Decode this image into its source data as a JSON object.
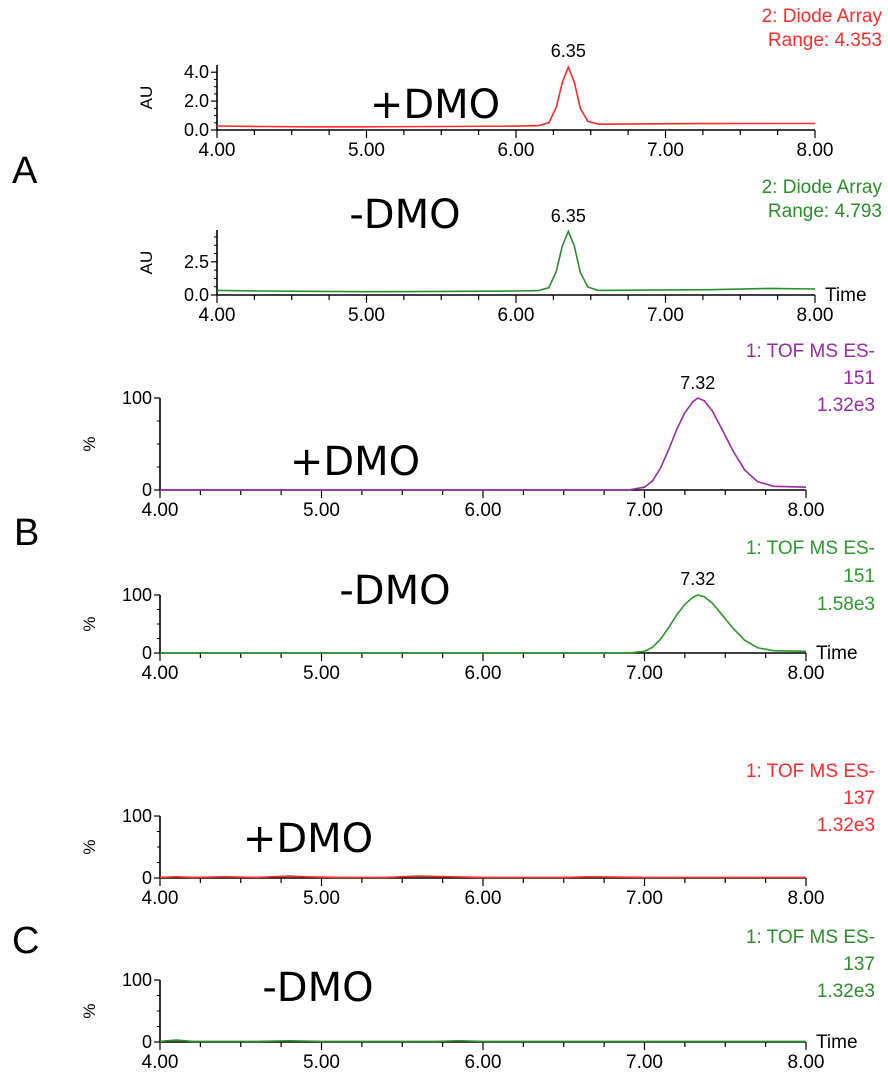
{
  "sections": [
    "A",
    "B",
    "C"
  ],
  "x_axis_label": "Time",
  "chart_data": [
    {
      "type": "line",
      "section": "A",
      "condition": "+DMO",
      "detector": "2: Diode Array",
      "range": "Range: 4.353",
      "ylabel": "AU",
      "color": "#ff2a2a",
      "xlim": [
        4.0,
        8.0
      ],
      "ylim": [
        0.0,
        4.5
      ],
      "xticks": [
        "4.00",
        "5.00",
        "6.00",
        "7.00",
        "8.00"
      ],
      "yticks": [
        {
          "value": 0.0,
          "label": "0.0"
        },
        {
          "value": 2.0,
          "label": "2.0"
        },
        {
          "value": 4.0,
          "label": "4.0"
        }
      ],
      "peak_label": "6.35",
      "show_time_label": false,
      "points": [
        [
          4.0,
          0.28
        ],
        [
          4.3,
          0.24
        ],
        [
          4.6,
          0.22
        ],
        [
          5.0,
          0.22
        ],
        [
          5.5,
          0.24
        ],
        [
          6.0,
          0.27
        ],
        [
          6.15,
          0.3
        ],
        [
          6.22,
          0.5
        ],
        [
          6.27,
          1.6
        ],
        [
          6.31,
          3.3
        ],
        [
          6.35,
          4.35
        ],
        [
          6.39,
          3.3
        ],
        [
          6.43,
          1.5
        ],
        [
          6.48,
          0.6
        ],
        [
          6.55,
          0.4
        ],
        [
          6.8,
          0.42
        ],
        [
          7.2,
          0.44
        ],
        [
          7.6,
          0.45
        ],
        [
          8.0,
          0.45
        ]
      ]
    },
    {
      "type": "line",
      "section": "A",
      "condition": "-DMO",
      "detector": "2: Diode Array",
      "range": "Range: 4.793",
      "ylabel": "AU",
      "color": "#2a8f2a",
      "xlim": [
        4.0,
        8.0
      ],
      "ylim": [
        0.0,
        4.9
      ],
      "xticks": [
        "4.00",
        "5.00",
        "6.00",
        "7.00",
        "8.00"
      ],
      "yticks": [
        {
          "value": 0.0,
          "label": "0.0"
        },
        {
          "value": 2.5,
          "label": "2.5"
        }
      ],
      "peak_label": "6.35",
      "show_time_label": true,
      "points": [
        [
          4.0,
          0.35
        ],
        [
          4.3,
          0.3
        ],
        [
          4.6,
          0.28
        ],
        [
          5.0,
          0.25
        ],
        [
          5.5,
          0.27
        ],
        [
          6.0,
          0.3
        ],
        [
          6.15,
          0.33
        ],
        [
          6.22,
          0.55
        ],
        [
          6.27,
          1.8
        ],
        [
          6.31,
          3.7
        ],
        [
          6.35,
          4.79
        ],
        [
          6.39,
          3.7
        ],
        [
          6.43,
          1.7
        ],
        [
          6.48,
          0.6
        ],
        [
          6.55,
          0.35
        ],
        [
          6.9,
          0.37
        ],
        [
          7.3,
          0.4
        ],
        [
          7.7,
          0.5
        ],
        [
          8.0,
          0.45
        ]
      ]
    },
    {
      "type": "line",
      "section": "B",
      "condition": "+DMO",
      "detector": "1: TOF MS ES-",
      "mass": "151",
      "intensity": "1.32e3",
      "ylabel": "%",
      "color": "#9a2aa8",
      "xlim": [
        4.0,
        8.0
      ],
      "ylim": [
        0,
        100
      ],
      "xticks": [
        "4.00",
        "5.00",
        "6.00",
        "7.00",
        "8.00"
      ],
      "yticks": [
        {
          "value": 0,
          "label": "0"
        },
        {
          "value": 100,
          "label": "100"
        }
      ],
      "peak_label": "7.32",
      "show_time_label": false,
      "points": [
        [
          4.0,
          0
        ],
        [
          6.9,
          0
        ],
        [
          7.0,
          3
        ],
        [
          7.05,
          10
        ],
        [
          7.1,
          24
        ],
        [
          7.15,
          44
        ],
        [
          7.2,
          66
        ],
        [
          7.25,
          84
        ],
        [
          7.3,
          96
        ],
        [
          7.33,
          100
        ],
        [
          7.37,
          97
        ],
        [
          7.42,
          86
        ],
        [
          7.48,
          66
        ],
        [
          7.55,
          42
        ],
        [
          7.62,
          22
        ],
        [
          7.7,
          9
        ],
        [
          7.8,
          4
        ],
        [
          8.0,
          3
        ]
      ]
    },
    {
      "type": "line",
      "section": "B",
      "condition": "-DMO",
      "detector": "1: TOF MS ES-",
      "mass": "151",
      "intensity": "1.58e3",
      "ylabel": "%",
      "color": "#2a9a2a",
      "xlim": [
        4.0,
        8.0
      ],
      "ylim": [
        0,
        100
      ],
      "xticks": [
        "4.00",
        "5.00",
        "6.00",
        "7.00",
        "8.00"
      ],
      "yticks": [
        {
          "value": 0,
          "label": "0"
        },
        {
          "value": 100,
          "label": "100"
        }
      ],
      "peak_label": "7.32",
      "show_time_label": true,
      "points": [
        [
          4.0,
          0
        ],
        [
          6.9,
          0
        ],
        [
          7.0,
          3
        ],
        [
          7.05,
          10
        ],
        [
          7.1,
          24
        ],
        [
          7.15,
          44
        ],
        [
          7.2,
          66
        ],
        [
          7.25,
          84
        ],
        [
          7.3,
          96
        ],
        [
          7.33,
          100
        ],
        [
          7.37,
          97
        ],
        [
          7.42,
          86
        ],
        [
          7.48,
          66
        ],
        [
          7.55,
          42
        ],
        [
          7.62,
          22
        ],
        [
          7.7,
          9
        ],
        [
          7.8,
          4
        ],
        [
          8.0,
          3
        ]
      ]
    },
    {
      "type": "line",
      "section": "C",
      "condition": "+DMO",
      "detector": "1: TOF MS ES-",
      "mass": "137",
      "intensity": "1.32e3",
      "ylabel": "%",
      "color": "#ff2a2a",
      "xlim": [
        4.0,
        8.0
      ],
      "ylim": [
        0,
        100
      ],
      "xticks": [
        "4.00",
        "5.00",
        "6.00",
        "7.00",
        "8.00"
      ],
      "yticks": [
        {
          "value": 0,
          "label": "0"
        },
        {
          "value": 100,
          "label": "100"
        }
      ],
      "peak_label": "",
      "show_time_label": false,
      "points": [
        [
          4.0,
          1
        ],
        [
          4.1,
          2
        ],
        [
          4.2,
          1
        ],
        [
          4.4,
          2
        ],
        [
          4.6,
          1
        ],
        [
          4.8,
          3
        ],
        [
          4.9,
          2
        ],
        [
          5.1,
          1
        ],
        [
          5.4,
          1
        ],
        [
          5.6,
          3
        ],
        [
          5.8,
          2
        ],
        [
          6.0,
          1
        ],
        [
          6.5,
          1
        ],
        [
          6.65,
          2
        ],
        [
          7.0,
          1
        ],
        [
          7.5,
          1
        ],
        [
          8.0,
          1
        ]
      ]
    },
    {
      "type": "line",
      "section": "C",
      "condition": "-DMO",
      "detector": "1: TOF MS ES-",
      "mass": "137",
      "intensity": "1.32e3",
      "ylabel": "%",
      "color": "#2a8f2a",
      "xlim": [
        4.0,
        8.0
      ],
      "ylim": [
        0,
        100
      ],
      "xticks": [
        "4.00",
        "5.00",
        "6.00",
        "7.00",
        "8.00"
      ],
      "yticks": [
        {
          "value": 0,
          "label": "0"
        },
        {
          "value": 100,
          "label": "100"
        }
      ],
      "peak_label": "",
      "show_time_label": true,
      "points": [
        [
          4.0,
          1
        ],
        [
          4.1,
          3
        ],
        [
          4.2,
          1
        ],
        [
          4.6,
          1
        ],
        [
          4.8,
          2
        ],
        [
          5.0,
          1
        ],
        [
          5.7,
          1
        ],
        [
          5.85,
          2
        ],
        [
          6.0,
          1
        ],
        [
          6.5,
          1
        ],
        [
          7.0,
          1
        ],
        [
          7.5,
          1
        ],
        [
          8.0,
          1
        ]
      ]
    }
  ]
}
